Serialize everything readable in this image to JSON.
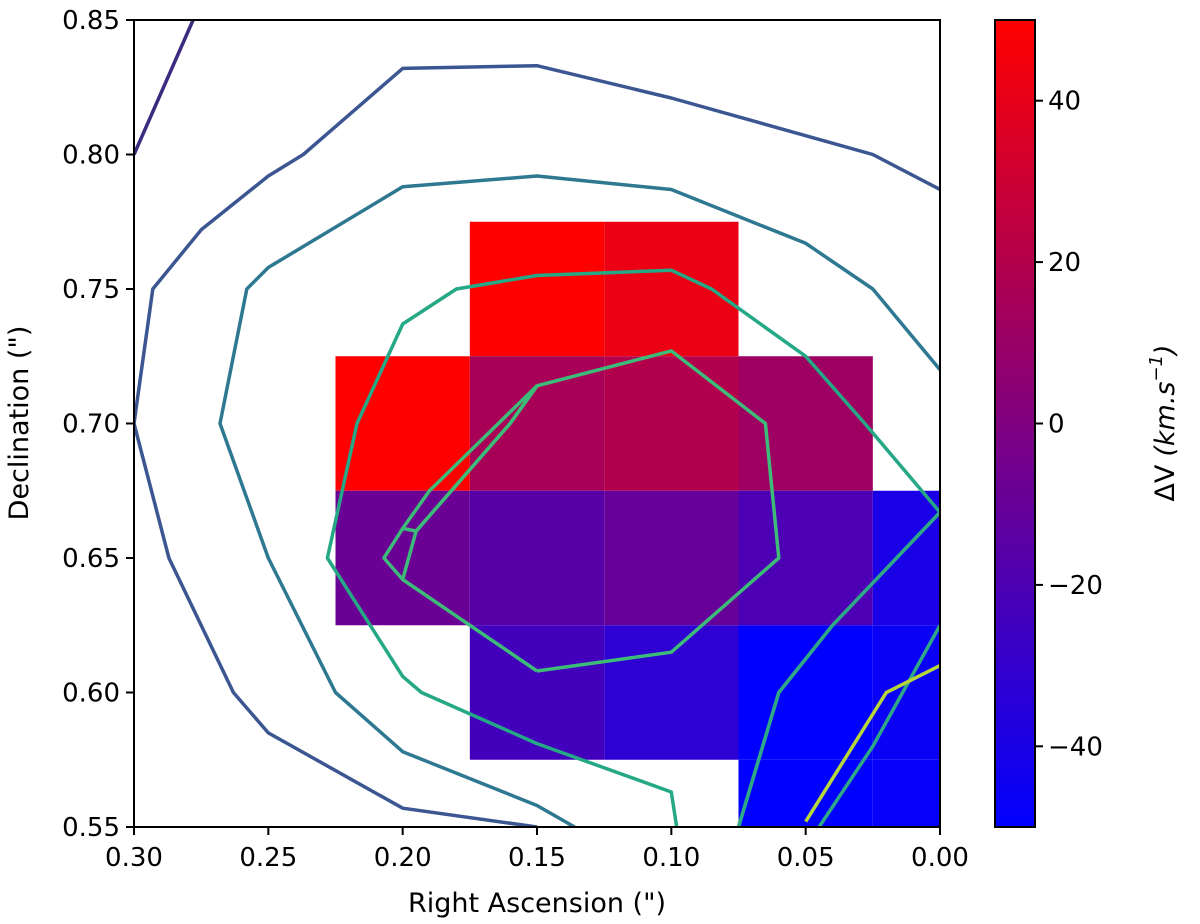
{
  "chart_data": {
    "type": "heatmap",
    "xlabel": "Right Ascension (\")",
    "ylabel": "Declination (\")",
    "colorbar_label_prefix": "ΔV",
    "colorbar_label_units": "(km.s",
    "colorbar_label_exp": "−1",
    "colorbar_label_close": ")",
    "xlim": [
      0.3,
      0.0
    ],
    "ylim": [
      0.55,
      0.85
    ],
    "x_ticks": [
      0.3,
      0.25,
      0.2,
      0.15,
      0.1,
      0.05,
      0.0
    ],
    "x_tick_labels": [
      "0.30",
      "0.25",
      "0.20",
      "0.15",
      "0.10",
      "0.05",
      "0.00"
    ],
    "y_ticks": [
      0.55,
      0.6,
      0.65,
      0.7,
      0.75,
      0.8,
      0.85
    ],
    "y_tick_labels": [
      "0.55",
      "0.60",
      "0.65",
      "0.70",
      "0.75",
      "0.80",
      "0.85"
    ],
    "colorbar": {
      "vmin": -50,
      "vmax": 50,
      "low_color": "#0000ff",
      "high_color": "#ff0000",
      "ticks": [
        40,
        20,
        0,
        -20,
        -40
      ],
      "tick_labels": [
        "40",
        "20",
        "0",
        "−20",
        "−40"
      ]
    },
    "pixel_size": 0.05,
    "pixels": [
      {
        "ra": 0.15,
        "dec": 0.75,
        "dv": 50
      },
      {
        "ra": 0.1,
        "dec": 0.75,
        "dv": 42
      },
      {
        "ra": 0.2,
        "dec": 0.7,
        "dv": 50
      },
      {
        "ra": 0.15,
        "dec": 0.7,
        "dv": 16
      },
      {
        "ra": 0.1,
        "dec": 0.7,
        "dv": 20
      },
      {
        "ra": 0.05,
        "dec": 0.7,
        "dv": 12
      },
      {
        "ra": 0.2,
        "dec": 0.65,
        "dv": -8
      },
      {
        "ra": 0.15,
        "dec": 0.65,
        "dv": -16
      },
      {
        "ra": 0.1,
        "dec": 0.65,
        "dv": -10
      },
      {
        "ra": 0.05,
        "dec": 0.65,
        "dv": -20
      },
      {
        "ra": 0.0,
        "dec": 0.65,
        "dv": -40
      },
      {
        "ra": 0.15,
        "dec": 0.6,
        "dv": -24
      },
      {
        "ra": 0.1,
        "dec": 0.6,
        "dv": -32
      },
      {
        "ra": 0.05,
        "dec": 0.6,
        "dv": -50
      },
      {
        "ra": 0.0,
        "dec": 0.6,
        "dv": -46
      },
      {
        "ra": 0.05,
        "dec": 0.55,
        "dv": -50
      },
      {
        "ra": 0.0,
        "dec": 0.55,
        "dv": -48
      }
    ],
    "contours": [
      {
        "color": "#3b2a7e",
        "points": [
          [
            0.3,
            0.8
          ],
          [
            0.278,
            0.85
          ]
        ]
      },
      {
        "color": "#3b5691",
        "points": [
          [
            0.3,
            0.7
          ],
          [
            0.293,
            0.75
          ],
          [
            0.275,
            0.772
          ],
          [
            0.25,
            0.792
          ],
          [
            0.237,
            0.8
          ],
          [
            0.2,
            0.832
          ],
          [
            0.15,
            0.833
          ],
          [
            0.1,
            0.821
          ],
          [
            0.05,
            0.807
          ],
          [
            0.025,
            0.8
          ],
          [
            0.0,
            0.787
          ]
        ]
      },
      {
        "color": "#3b5691",
        "points": [
          [
            0.3,
            0.7
          ],
          [
            0.287,
            0.65
          ],
          [
            0.263,
            0.6
          ],
          [
            0.25,
            0.585
          ],
          [
            0.2,
            0.557
          ],
          [
            0.15,
            0.55
          ]
        ]
      },
      {
        "color": "#2e7891",
        "points": [
          [
            0.136,
            0.55
          ],
          [
            0.15,
            0.558
          ],
          [
            0.2,
            0.578
          ],
          [
            0.225,
            0.6
          ],
          [
            0.25,
            0.65
          ],
          [
            0.268,
            0.7
          ],
          [
            0.258,
            0.75
          ],
          [
            0.25,
            0.758
          ],
          [
            0.2,
            0.788
          ],
          [
            0.15,
            0.792
          ],
          [
            0.1,
            0.787
          ],
          [
            0.05,
            0.767
          ],
          [
            0.025,
            0.75
          ],
          [
            0.0,
            0.72
          ]
        ]
      },
      {
        "color": "#25998b",
        "points": [
          [
            0.075,
            0.55
          ],
          [
            0.06,
            0.6
          ],
          [
            0.04,
            0.625
          ],
          [
            0.0,
            0.667
          ]
        ]
      },
      {
        "color": "#25a886",
        "points": [
          [
            0.098,
            0.55
          ],
          [
            0.1,
            0.563
          ],
          [
            0.15,
            0.581
          ],
          [
            0.193,
            0.6
          ],
          [
            0.2,
            0.606
          ],
          [
            0.228,
            0.65
          ],
          [
            0.217,
            0.7
          ],
          [
            0.2,
            0.737
          ],
          [
            0.18,
            0.75
          ],
          [
            0.15,
            0.755
          ],
          [
            0.1,
            0.757
          ],
          [
            0.085,
            0.75
          ],
          [
            0.05,
            0.725
          ],
          [
            0.028,
            0.7
          ],
          [
            0.0,
            0.667
          ]
        ]
      },
      {
        "color": "#3dbb78",
        "points": [
          [
            0.15,
            0.608
          ],
          [
            0.1,
            0.615
          ],
          [
            0.06,
            0.65
          ],
          [
            0.065,
            0.7
          ],
          [
            0.1,
            0.727
          ],
          [
            0.15,
            0.714
          ],
          [
            0.16,
            0.7
          ],
          [
            0.195,
            0.66
          ],
          [
            0.2,
            0.642
          ],
          [
            0.207,
            0.65
          ],
          [
            0.2,
            0.661
          ],
          [
            0.19,
            0.675
          ],
          [
            0.15,
            0.714
          ]
        ]
      },
      {
        "color": "#3dbb78",
        "points": [
          [
            0.15,
            0.608
          ],
          [
            0.2,
            0.642
          ]
        ]
      },
      {
        "color": "#3dbb78",
        "points": [
          [
            0.15,
            0.714
          ],
          [
            0.16,
            0.7
          ],
          [
            0.195,
            0.66
          ],
          [
            0.2,
            0.661
          ]
        ]
      },
      {
        "color": "#2ea887",
        "points": [
          [
            0.075,
            0.55
          ],
          [
            0.06,
            0.6
          ],
          [
            0.04,
            0.625
          ],
          [
            0.0,
            0.667
          ]
        ]
      },
      {
        "color": "#2ea887",
        "points": [
          [
            0.045,
            0.55
          ],
          [
            0.025,
            0.58
          ],
          [
            0.0,
            0.625
          ]
        ]
      },
      {
        "color": "#b8d83a",
        "points": [
          [
            0.05,
            0.552
          ],
          [
            0.02,
            0.6
          ],
          [
            0.0,
            0.61
          ]
        ]
      }
    ]
  }
}
